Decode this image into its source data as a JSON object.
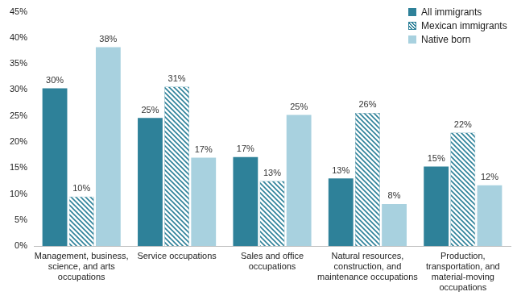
{
  "chart_data": {
    "type": "bar",
    "categories": [
      "Management, business, science, and arts occupations",
      "Service occupations",
      "Sales and office occupations",
      "Natural resources, construction, and maintenance occupations",
      "Production, transportation, and material-moving occupations"
    ],
    "series": [
      {
        "name": "All immigrants",
        "color": "#2e8199",
        "values": [
          30.3,
          24.6,
          17.1,
          13.0,
          15.3
        ],
        "value_labels": [
          "30%",
          "25%",
          "17%",
          "13%",
          "15%"
        ]
      },
      {
        "name": "Mexican immigrants",
        "color": "#2e8199",
        "values": [
          9.5,
          30.6,
          12.5,
          25.6,
          21.8
        ],
        "value_labels": [
          "10%",
          "31%",
          "13%",
          "26%",
          "22%"
        ]
      },
      {
        "name": "Native born",
        "color": "#a8d1df",
        "values": [
          38.2,
          17.0,
          25.2,
          8.1,
          11.7
        ],
        "value_labels": [
          "38%",
          "17%",
          "25%",
          "8%",
          "12%"
        ]
      }
    ],
    "ylim": [
      0,
      45
    ],
    "yticks": [
      {
        "value": 0,
        "label": "0%"
      },
      {
        "value": 5,
        "label": "5%"
      },
      {
        "value": 10,
        "label": "10%"
      },
      {
        "value": 15,
        "label": "15%"
      },
      {
        "value": 20,
        "label": "20%"
      },
      {
        "value": 25,
        "label": "25%"
      },
      {
        "value": 30,
        "label": "30%"
      },
      {
        "value": 35,
        "label": "35%"
      },
      {
        "value": 40,
        "label": "40%"
      },
      {
        "value": 45,
        "label": "45%"
      }
    ],
    "grid": false,
    "legend": "upper right",
    "data_labels": true
  }
}
